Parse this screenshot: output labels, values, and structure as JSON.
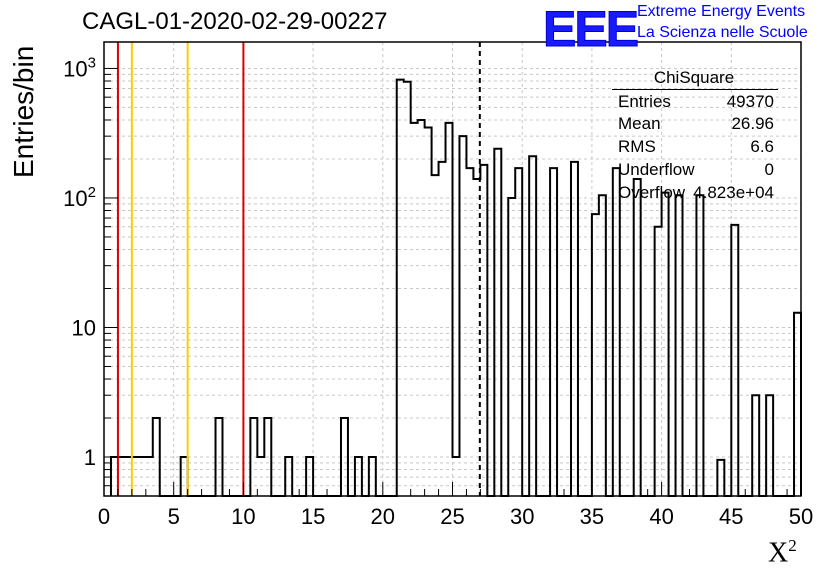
{
  "page_title": "CAGL-01-2020-02-29-00227",
  "logo": {
    "mark": "EEE",
    "line1": "Extreme Energy Events",
    "line2": "La Scienza nelle Scuole"
  },
  "stats_box": {
    "title": "ChiSquare",
    "rows": [
      {
        "key": "Entries",
        "value": "49370"
      },
      {
        "key": "Mean",
        "value": "26.96"
      },
      {
        "key": "RMS",
        "value": "6.6"
      },
      {
        "key": "Underflow",
        "value": "0"
      },
      {
        "key": "Overflow",
        "value": "4.823e+04"
      }
    ]
  },
  "colors": {
    "histogram": "#000000",
    "red_lines": "#dd0000",
    "yellow_lines": "#ffcc00",
    "grid": "#c8c8c8",
    "logo": "#0000ff"
  },
  "chart_data": {
    "type": "histogram",
    "title": "CAGL-01-2020-02-29-00227",
    "xlabel": "X",
    "xlabel_superscript": "2",
    "ylabel": "Entries/bin",
    "xlim": [
      0,
      50
    ],
    "ylim": [
      0.5,
      1600
    ],
    "y_scale": "log",
    "grid": true,
    "bin_width": 0.5,
    "x_ticks": [
      "0",
      "5",
      "10",
      "15",
      "20",
      "25",
      "30",
      "35",
      "40",
      "45",
      "50"
    ],
    "y_ticks": [
      {
        "value": 1,
        "label": "1"
      },
      {
        "value": 10,
        "label": "10"
      },
      {
        "value": 100,
        "label": "10",
        "exponent": "2"
      },
      {
        "value": 1000,
        "label": "10",
        "exponent": "3"
      }
    ],
    "bins": [
      [
        0.5,
        1
      ],
      [
        1.0,
        1
      ],
      [
        1.5,
        1
      ],
      [
        2.0,
        1
      ],
      [
        2.5,
        1
      ],
      [
        3.0,
        1
      ],
      [
        3.5,
        2
      ],
      [
        4.0,
        0
      ],
      [
        4.5,
        0
      ],
      [
        5.0,
        0
      ],
      [
        5.5,
        1
      ],
      [
        6.0,
        0
      ],
      [
        6.5,
        0
      ],
      [
        7.0,
        0
      ],
      [
        7.5,
        0
      ],
      [
        8.0,
        2
      ],
      [
        8.5,
        0
      ],
      [
        9.0,
        0
      ],
      [
        9.5,
        0
      ],
      [
        10.0,
        0
      ],
      [
        10.5,
        2
      ],
      [
        11.0,
        1
      ],
      [
        11.5,
        2
      ],
      [
        12.0,
        0
      ],
      [
        12.5,
        0
      ],
      [
        13.0,
        1
      ],
      [
        13.5,
        0
      ],
      [
        14.0,
        0
      ],
      [
        14.5,
        1
      ],
      [
        15.0,
        0
      ],
      [
        15.5,
        0
      ],
      [
        16.0,
        0
      ],
      [
        16.5,
        0
      ],
      [
        17.0,
        2
      ],
      [
        17.5,
        0
      ],
      [
        18.0,
        1
      ],
      [
        18.5,
        0
      ],
      [
        19.0,
        1
      ],
      [
        19.5,
        0
      ],
      [
        20.0,
        0
      ],
      [
        20.5,
        0
      ],
      [
        21.0,
        820
      ],
      [
        21.5,
        790
      ],
      [
        22.0,
        380
      ],
      [
        22.5,
        400
      ],
      [
        23.0,
        350
      ],
      [
        23.5,
        150
      ],
      [
        24.0,
        190
      ],
      [
        24.5,
        380
      ],
      [
        25.0,
        1
      ],
      [
        25.5,
        300
      ],
      [
        26.0,
        170
      ],
      [
        26.5,
        140
      ],
      [
        27.0,
        180
      ],
      [
        27.5,
        0
      ],
      [
        28.0,
        240
      ],
      [
        28.5,
        0
      ],
      [
        29.0,
        100
      ],
      [
        29.5,
        170
      ],
      [
        30.0,
        0
      ],
      [
        30.5,
        210
      ],
      [
        31.0,
        0
      ],
      [
        31.5,
        0
      ],
      [
        32.0,
        170
      ],
      [
        32.5,
        0
      ],
      [
        33.0,
        0
      ],
      [
        33.5,
        190
      ],
      [
        34.0,
        0
      ],
      [
        34.5,
        0
      ],
      [
        35.0,
        75
      ],
      [
        35.5,
        105
      ],
      [
        36.0,
        0
      ],
      [
        36.5,
        170
      ],
      [
        37.0,
        0
      ],
      [
        37.5,
        0
      ],
      [
        38.0,
        140
      ],
      [
        38.5,
        0
      ],
      [
        39.0,
        0
      ],
      [
        39.5,
        60
      ],
      [
        40.0,
        110
      ],
      [
        40.5,
        0
      ],
      [
        41.0,
        105
      ],
      [
        41.5,
        0
      ],
      [
        42.0,
        0
      ],
      [
        42.5,
        105
      ],
      [
        43.0,
        0
      ],
      [
        43.5,
        0
      ],
      [
        44.0,
        0.95
      ],
      [
        44.5,
        0
      ],
      [
        45.0,
        62
      ],
      [
        45.5,
        0
      ],
      [
        46.0,
        0
      ],
      [
        46.5,
        3
      ],
      [
        47.0,
        0
      ],
      [
        47.5,
        3
      ],
      [
        48.0,
        0
      ],
      [
        48.5,
        0
      ],
      [
        49.0,
        0
      ],
      [
        49.5,
        13
      ]
    ],
    "vertical_lines": [
      {
        "x": 1,
        "color": "red",
        "style": "solid"
      },
      {
        "x": 2,
        "color": "yellow",
        "style": "solid"
      },
      {
        "x": 6,
        "color": "yellow",
        "style": "solid"
      },
      {
        "x": 10,
        "color": "red",
        "style": "solid"
      },
      {
        "x": 26.96,
        "color": "black",
        "style": "dashed"
      }
    ]
  }
}
